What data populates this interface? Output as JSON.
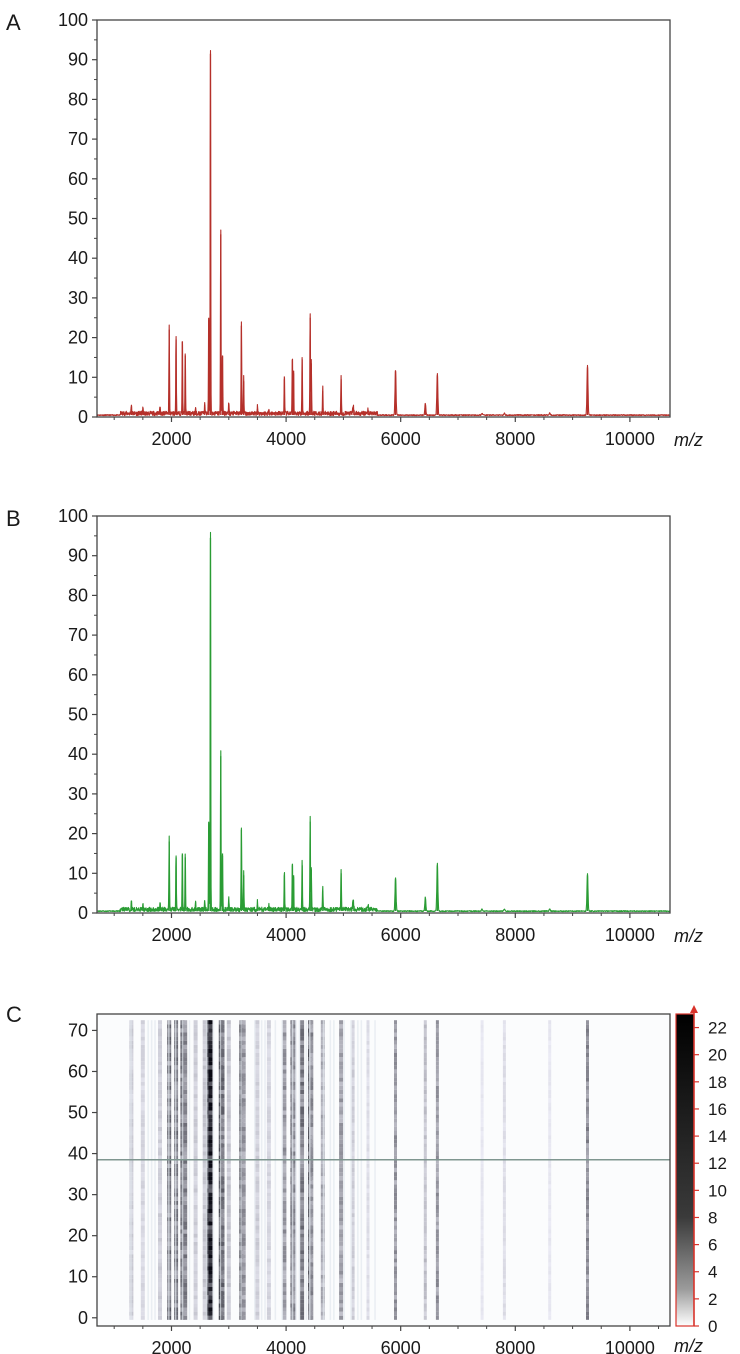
{
  "colors": {
    "spectrum_a": "#b5302a",
    "spectrum_b": "#2a9c34",
    "heatmap_cut_line": "#7f9690",
    "colorbar_outline": "#d8332b",
    "frame": "#444444"
  },
  "chart_data": [
    {
      "panel": "A",
      "type": "line",
      "x_unit_label": "m/z",
      "xlim": [
        700,
        10700
      ],
      "ylim": [
        0,
        100
      ],
      "x_ticks": [
        "2000",
        "4000",
        "6000",
        "8000",
        "10000"
      ],
      "y_ticks": [
        "0",
        "10",
        "20",
        "30",
        "40",
        "50",
        "60",
        "70",
        "80",
        "90",
        "100"
      ],
      "grid": false,
      "series": [
        {
          "color": "#b5302a",
          "peaks": [
            [
              1300,
              2.5
            ],
            [
              1500,
              1.5
            ],
            [
              1800,
              2
            ],
            [
              1960,
              22
            ],
            [
              2080,
              19.5
            ],
            [
              2190,
              19
            ],
            [
              2240,
              15.5
            ],
            [
              2420,
              1.5
            ],
            [
              2580,
              3
            ],
            [
              2650,
              25
            ],
            [
              2680,
              91.5
            ],
            [
              2860,
              46
            ],
            [
              2890,
              15.5
            ],
            [
              3000,
              3
            ],
            [
              3220,
              23
            ],
            [
              3260,
              9
            ],
            [
              3500,
              2
            ],
            [
              3700,
              1.5
            ],
            [
              3970,
              9.5
            ],
            [
              4110,
              14.5
            ],
            [
              4130,
              11
            ],
            [
              4280,
              14.5
            ],
            [
              4420,
              25
            ],
            [
              4440,
              13.5
            ],
            [
              4640,
              6.5
            ],
            [
              4960,
              9.5
            ],
            [
              5170,
              2
            ],
            [
              5430,
              1
            ],
            [
              5910,
              11.5
            ],
            [
              6430,
              3
            ],
            [
              6640,
              10.5
            ],
            [
              7420,
              0.5
            ],
            [
              7810,
              0.5
            ],
            [
              8600,
              0.5
            ],
            [
              9260,
              12.5
            ]
          ]
        }
      ]
    },
    {
      "panel": "B",
      "type": "line",
      "x_unit_label": "m/z",
      "xlim": [
        700,
        10700
      ],
      "ylim": [
        0,
        100
      ],
      "x_ticks": [
        "2000",
        "4000",
        "6000",
        "8000",
        "10000"
      ],
      "y_ticks": [
        "0",
        "10",
        "20",
        "30",
        "40",
        "50",
        "60",
        "70",
        "80",
        "90",
        "100"
      ],
      "grid": false,
      "series": [
        {
          "color": "#2a9c34",
          "peaks": [
            [
              1300,
              2.5
            ],
            [
              1500,
              1.5
            ],
            [
              1800,
              1.5
            ],
            [
              1960,
              18
            ],
            [
              2080,
              14
            ],
            [
              2190,
              15
            ],
            [
              2240,
              14
            ],
            [
              2420,
              2
            ],
            [
              2580,
              2.5
            ],
            [
              2650,
              23
            ],
            [
              2680,
              94.5
            ],
            [
              2860,
              39.5
            ],
            [
              2890,
              15
            ],
            [
              3000,
              3
            ],
            [
              3220,
              21
            ],
            [
              3260,
              9.5
            ],
            [
              3500,
              2
            ],
            [
              3700,
              1.5
            ],
            [
              3970,
              9.5
            ],
            [
              4110,
              12
            ],
            [
              4130,
              9
            ],
            [
              4280,
              12
            ],
            [
              4420,
              23
            ],
            [
              4440,
              11
            ],
            [
              4640,
              5.5
            ],
            [
              4960,
              10
            ],
            [
              5170,
              2.5
            ],
            [
              5430,
              1
            ],
            [
              5910,
              8.5
            ],
            [
              6430,
              3.5
            ],
            [
              6640,
              12
            ],
            [
              7420,
              0.5
            ],
            [
              7810,
              0.5
            ],
            [
              8600,
              0.5
            ],
            [
              9260,
              9.5
            ]
          ]
        }
      ]
    },
    {
      "panel": "C",
      "type": "heatmap",
      "x_unit_label": "m/z",
      "xlim": [
        700,
        10700
      ],
      "ylim": [
        -2,
        74
      ],
      "x_ticks": [
        "2000",
        "4000",
        "6000",
        "8000",
        "10000"
      ],
      "y_ticks": [
        "0",
        "10",
        "20",
        "30",
        "40",
        "50",
        "60",
        "70"
      ],
      "row_count": 73,
      "horizontal_line_at_row": 38.5,
      "colorbar": {
        "range": [
          0,
          23
        ],
        "ticks": [
          "0",
          "2",
          "4",
          "6",
          "8",
          "10",
          "12",
          "14",
          "16",
          "18",
          "20",
          "22"
        ],
        "scale": "grayscale (white = 0, black = max)"
      },
      "columns": [
        [
          1300,
          2
        ],
        [
          1500,
          1.5
        ],
        [
          1800,
          2
        ],
        [
          1960,
          11
        ],
        [
          2080,
          10
        ],
        [
          2190,
          11
        ],
        [
          2240,
          9
        ],
        [
          2420,
          2
        ],
        [
          2580,
          2.5
        ],
        [
          2650,
          14
        ],
        [
          2680,
          23
        ],
        [
          2860,
          21
        ],
        [
          2890,
          11
        ],
        [
          3000,
          2.5
        ],
        [
          3220,
          16
        ],
        [
          3260,
          7
        ],
        [
          3500,
          2
        ],
        [
          3700,
          1.5
        ],
        [
          3970,
          7
        ],
        [
          4110,
          10
        ],
        [
          4130,
          8
        ],
        [
          4280,
          10
        ],
        [
          4420,
          17
        ],
        [
          4440,
          8
        ],
        [
          4640,
          5
        ],
        [
          4960,
          6
        ],
        [
          5170,
          2
        ],
        [
          5430,
          1
        ],
        [
          5910,
          7
        ],
        [
          6430,
          3
        ],
        [
          6640,
          7
        ],
        [
          7420,
          0.5
        ],
        [
          7810,
          1
        ],
        [
          8600,
          0.5
        ],
        [
          9260,
          8
        ]
      ]
    }
  ]
}
